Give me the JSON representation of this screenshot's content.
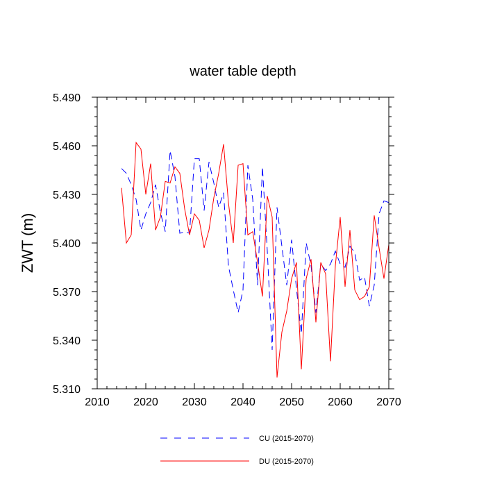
{
  "chart_data": {
    "type": "line",
    "title": "water table depth",
    "xlabel": "",
    "ylabel": "ZWT  (m)",
    "xlim": [
      2010,
      2070
    ],
    "ylim": [
      5.31,
      5.49
    ],
    "x_ticks": [
      "2010",
      "2020",
      "2030",
      "2040",
      "2050",
      "2060",
      "2070"
    ],
    "y_ticks": [
      "5.310",
      "5.340",
      "5.370",
      "5.400",
      "5.430",
      "5.460",
      "5.490"
    ],
    "x": [
      2015,
      2016,
      2017,
      2018,
      2019,
      2020,
      2021,
      2022,
      2023,
      2024,
      2025,
      2026,
      2027,
      2028,
      2029,
      2030,
      2031,
      2032,
      2033,
      2034,
      2035,
      2036,
      2037,
      2038,
      2039,
      2040,
      2041,
      2042,
      2043,
      2044,
      2045,
      2046,
      2047,
      2048,
      2049,
      2050,
      2051,
      2052,
      2053,
      2054,
      2055,
      2056,
      2057,
      2058,
      2059,
      2060,
      2061,
      2062,
      2063,
      2064,
      2065,
      2066,
      2067,
      2068,
      2069,
      2070
    ],
    "series": [
      {
        "name": "CU (2015-2070)",
        "color": "#0000ff",
        "dash": "dashed",
        "values": [
          5.446,
          5.443,
          5.436,
          5.427,
          5.408,
          5.418,
          5.425,
          5.436,
          5.419,
          5.407,
          5.457,
          5.441,
          5.406,
          5.407,
          5.406,
          5.452,
          5.452,
          5.42,
          5.45,
          5.437,
          5.422,
          5.431,
          5.386,
          5.371,
          5.357,
          5.371,
          5.448,
          5.427,
          5.374,
          5.447,
          5.395,
          5.334,
          5.422,
          5.398,
          5.374,
          5.402,
          5.372,
          5.344,
          5.4,
          5.386,
          5.357,
          5.387,
          5.383,
          5.387,
          5.395,
          5.387,
          5.385,
          5.398,
          5.394,
          5.377,
          5.379,
          5.361,
          5.374,
          5.418,
          5.426,
          5.425
        ]
      },
      {
        "name": "DU (2015-2070)",
        "color": "#ff0000",
        "dash": "solid",
        "values": [
          5.434,
          5.4,
          5.405,
          5.462,
          5.458,
          5.43,
          5.449,
          5.408,
          5.416,
          5.438,
          5.437,
          5.447,
          5.443,
          5.421,
          5.405,
          5.418,
          5.414,
          5.397,
          5.408,
          5.428,
          5.443,
          5.461,
          5.425,
          5.4,
          5.448,
          5.449,
          5.405,
          5.407,
          5.388,
          5.367,
          5.429,
          5.416,
          5.317,
          5.345,
          5.358,
          5.378,
          5.388,
          5.322,
          5.378,
          5.39,
          5.351,
          5.388,
          5.381,
          5.327,
          5.386,
          5.416,
          5.373,
          5.408,
          5.371,
          5.365,
          5.367,
          5.373,
          5.417,
          5.397,
          5.378,
          5.399
        ]
      }
    ],
    "legend_position": "bottom",
    "grid": false
  }
}
